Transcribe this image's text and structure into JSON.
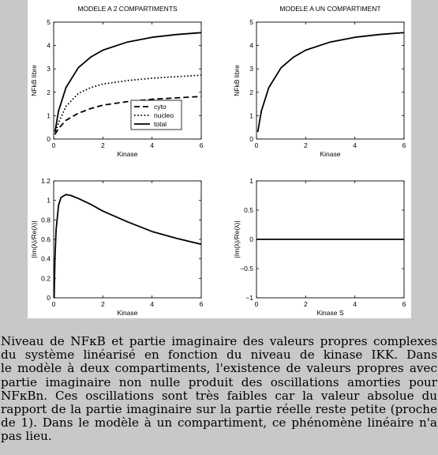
{
  "figure": {
    "chart_data": [
      {
        "type": "line",
        "title": "MODELE A 2 COMPARTIMENTS",
        "xlabel": "Kinase",
        "ylabel": "NFkB libre",
        "xlim": [
          0,
          6
        ],
        "ylim": [
          0,
          5
        ],
        "xticks": [
          0,
          2,
          4,
          6
        ],
        "yticks": [
          0,
          1,
          2,
          3,
          4,
          5
        ],
        "legend": "bottom-right",
        "series": [
          {
            "name": "cyto",
            "style": "dashed",
            "x": [
              0.05,
              0.2,
              0.5,
              1,
              1.5,
              2,
              3,
              4,
              5,
              6
            ],
            "y": [
              0.2,
              0.45,
              0.8,
              1.1,
              1.3,
              1.45,
              1.6,
              1.7,
              1.76,
              1.82
            ]
          },
          {
            "name": "nucleo",
            "style": "dotted",
            "x": [
              0.05,
              0.2,
              0.5,
              1,
              1.5,
              2,
              3,
              4,
              5,
              6
            ],
            "y": [
              0.2,
              0.7,
              1.4,
              1.95,
              2.2,
              2.35,
              2.5,
              2.6,
              2.67,
              2.73
            ]
          },
          {
            "name": "total",
            "style": "solid",
            "x": [
              0.05,
              0.2,
              0.5,
              1,
              1.5,
              2,
              3,
              4,
              5,
              6
            ],
            "y": [
              0.3,
              1.2,
              2.2,
              3.05,
              3.5,
              3.8,
              4.15,
              4.35,
              4.47,
              4.55
            ]
          }
        ]
      },
      {
        "type": "line",
        "title": "MODELE A UN COMPARTIMENT",
        "xlabel": "Kinase",
        "ylabel": "NFkB libre",
        "xlim": [
          0,
          6
        ],
        "ylim": [
          0,
          5
        ],
        "xticks": [
          0,
          2,
          4,
          6
        ],
        "yticks": [
          0,
          1,
          2,
          3,
          4,
          5
        ],
        "series": [
          {
            "style": "solid",
            "x": [
              0.05,
              0.2,
              0.5,
              1,
              1.5,
              2,
              3,
              4,
              5,
              6
            ],
            "y": [
              0.3,
              1.2,
              2.2,
              3.05,
              3.5,
              3.8,
              4.15,
              4.35,
              4.47,
              4.55
            ]
          }
        ]
      },
      {
        "type": "line",
        "title": "",
        "xlabel": "Kinase",
        "ylabel": "|Im(λ)/Re(λ)|",
        "xlim": [
          0,
          6
        ],
        "ylim": [
          0,
          1.2
        ],
        "xticks": [
          0,
          2,
          4,
          6
        ],
        "yticks": [
          0,
          0.2,
          0.4,
          0.6,
          0.8,
          1,
          1.2
        ],
        "series": [
          {
            "style": "solid",
            "x": [
              0.02,
              0.05,
              0.1,
              0.2,
              0.3,
              0.5,
              0.7,
              1,
              1.5,
              2,
              3,
              4,
              5,
              6
            ],
            "y": [
              0,
              0.4,
              0.7,
              0.95,
              1.03,
              1.06,
              1.05,
              1.02,
              0.96,
              0.89,
              0.78,
              0.68,
              0.61,
              0.55
            ]
          }
        ]
      },
      {
        "type": "line",
        "title": "",
        "xlabel": "Kinase S",
        "ylabel": "|Im(λ)/Re(λ)|",
        "xlim": [
          0,
          6
        ],
        "ylim": [
          -1,
          1
        ],
        "xticks": [
          0,
          2,
          4,
          6
        ],
        "yticks": [
          -1,
          -0.5,
          0,
          0.5,
          1
        ],
        "ytick_labels": [
          "−1",
          "−0.5",
          "0",
          "0.5",
          "1"
        ],
        "series": [
          {
            "style": "solid",
            "x": [
              0,
              6
            ],
            "y": [
              0,
              0
            ]
          }
        ]
      }
    ]
  },
  "caption": {
    "lines": [
      "Niveau de NFκB et partie imaginaire des valeurs propres complexes",
      "du système linéarisé en fonction du niveau de kinase IKK.  Dans",
      "le modèle à deux compartiments, l'existence de valeurs propres avec",
      "partie imaginaire non nulle produit des oscillations amorties pour",
      "NFκBn.  Ces oscillations sont très faibles car la valeur absolue du",
      "rapport de la partie imaginaire sur la partie réelle reste petite (proche",
      "de 1). Dans le modèle à un compartiment, ce phénomène linéaire n'a",
      "pas lieu."
    ]
  }
}
